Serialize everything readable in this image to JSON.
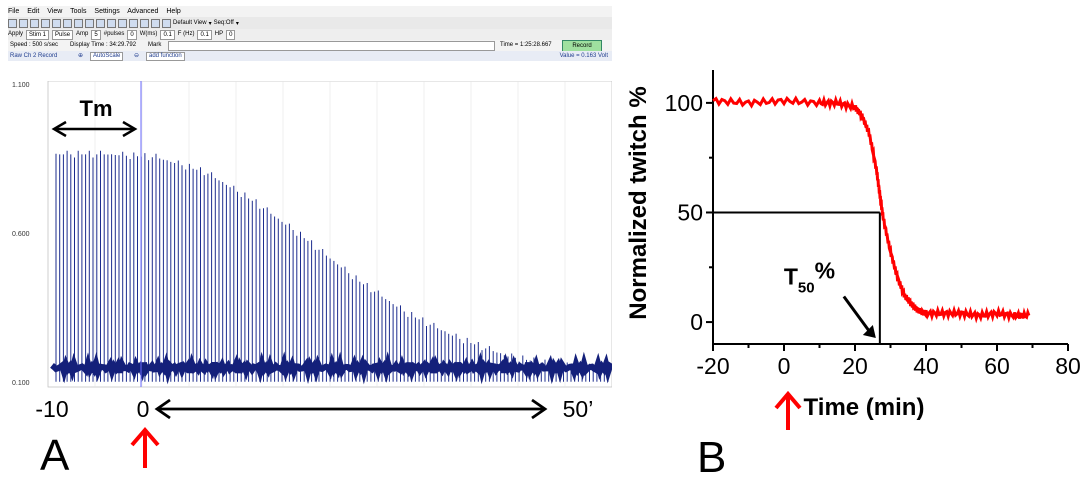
{
  "panel_a": {
    "panel_label": "A",
    "menu": [
      "File",
      "Edit",
      "View",
      "Tools",
      "Settings",
      "Advanced",
      "Help"
    ],
    "toolbar": {
      "view_select": "Default View",
      "seq": "Seq:Off"
    },
    "params": {
      "apply": "Apply",
      "stim": "Stim 1",
      "pulse": "Pulse",
      "amp_label": "Amp",
      "amp": "5",
      "pulses_label": "#pulses",
      "pulses": "0",
      "w_label": "W(ms)",
      "w": "0.1",
      "f_label": "F (Hz)",
      "f": "0.1",
      "hp_label": "HP",
      "hp": "0"
    },
    "info": {
      "speed": "Speed : 500 s/sec",
      "display_time": "Display Time : 34:29.792",
      "mark": "Mark",
      "time": "Time = 1:25:28.667",
      "record": "Record"
    },
    "channel": {
      "name": "Raw Ch 2 Record",
      "autoscale": "AutoScale",
      "add_function": "add function",
      "value": "Value = 0.163 Volt"
    },
    "y_ticks": [
      "1.100",
      "0.600",
      "0.100"
    ],
    "tm_label": "Tm",
    "x_labels": {
      "start": "-10",
      "zero": "0",
      "end": "50’"
    }
  },
  "chart_data": [
    {
      "type": "line",
      "description_panel": "A",
      "ylim": [
        0.1,
        1.1
      ],
      "y_ticks": [
        1.1,
        0.6,
        0.1
      ],
      "baseline": 0.163,
      "sweep_amplitudes_approx": [
        0.86,
        0.86,
        0.85,
        0.8,
        0.7,
        0.58,
        0.45,
        0.34,
        0.26,
        0.2,
        0.17,
        0.16
      ]
    },
    {
      "type": "line",
      "description_panel": "B",
      "xlabel": "Time (min)",
      "ylabel": "Normalized twitch %",
      "xlim": [
        -20,
        80
      ],
      "ylim": [
        -10,
        115
      ],
      "x_ticks": [
        -20,
        0,
        20,
        40,
        60,
        80
      ],
      "y_ticks": [
        0,
        50,
        100
      ],
      "series": [
        {
          "color": "#ff0000",
          "x": [
            -20,
            -10,
            0,
            10,
            15,
            20,
            22,
            24,
            26,
            27,
            28,
            30,
            32,
            34,
            36,
            38,
            40,
            45,
            50,
            55,
            60,
            65,
            69
          ],
          "y": [
            101,
            100,
            101,
            100,
            100,
            98,
            94,
            86,
            70,
            58,
            47,
            32,
            20,
            12,
            8,
            5,
            4,
            4,
            4,
            3,
            4,
            3,
            3
          ]
        }
      ],
      "annotation": {
        "t50_label": "T",
        "t50_subscript": "50",
        "t50_suffix": "%",
        "t50_x": 27,
        "t50_y": 50
      }
    }
  ],
  "panel_b": {
    "panel_label": "B",
    "xlabel": "Time (min)",
    "ylabel": "Normalized twitch %"
  }
}
